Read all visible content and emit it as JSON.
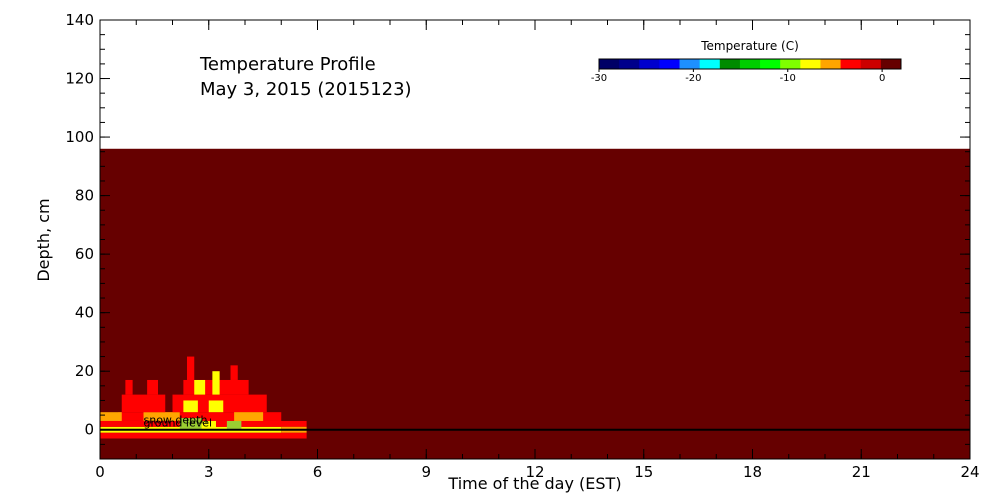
{
  "chart_data": {
    "type": "heatmap",
    "title_line1": "Temperature Profile",
    "title_line2": "May  3, 2015 (2015123)",
    "xlabel": "Time of the day (EST)",
    "ylabel": "Depth, cm",
    "xlim": [
      0,
      24
    ],
    "ylim": [
      -10,
      140
    ],
    "xticks": [
      0,
      3,
      6,
      9,
      12,
      15,
      18,
      21,
      24
    ],
    "yticks": [
      0,
      20,
      40,
      60,
      80,
      100,
      120,
      140
    ],
    "background_color": "#660000",
    "field_top_depth": 96,
    "snow_depth_label": "snow depth",
    "ground_level_label": "ground level",
    "ground_level_depth": 0,
    "colorbar": {
      "title": "Temperature (C)",
      "range": [
        -30,
        2
      ],
      "ticks": [
        -30,
        -20,
        -10,
        0
      ],
      "colors": [
        "#000066",
        "#00008b",
        "#0000cd",
        "#0000ff",
        "#1e90ff",
        "#00ffff",
        "#008b00",
        "#00cd00",
        "#00ff00",
        "#7fff00",
        "#ffff00",
        "#ffa500",
        "#ff0000",
        "#cc0000",
        "#660000"
      ]
    },
    "warm_patches": [
      {
        "t0": 0.0,
        "t1": 5.7,
        "d0": -3,
        "d1": -1,
        "color": "#ff0000"
      },
      {
        "t0": 0.0,
        "t1": 5.0,
        "d0": -1,
        "d1": 1,
        "color": "#ffff00"
      },
      {
        "t0": 0.0,
        "t1": 5.7,
        "d0": 1,
        "d1": 3,
        "color": "#ff0000"
      },
      {
        "t0": 5.0,
        "t1": 5.7,
        "d0": -1,
        "d1": 1,
        "color": "#ffa500"
      },
      {
        "t0": 0.5,
        "t1": 5.0,
        "d0": 3,
        "d1": 6,
        "color": "#ff0000"
      },
      {
        "t0": 1.2,
        "t1": 2.2,
        "d0": 3,
        "d1": 6,
        "color": "#ffa500"
      },
      {
        "t0": 2.2,
        "t1": 2.8,
        "d0": 0,
        "d1": 4,
        "color": "#9acd32"
      },
      {
        "t0": 3.5,
        "t1": 3.9,
        "d0": 0,
        "d1": 3,
        "color": "#9acd32"
      },
      {
        "t0": 0.6,
        "t1": 1.8,
        "d0": 6,
        "d1": 12,
        "color": "#ff0000"
      },
      {
        "t0": 2.0,
        "t1": 4.6,
        "d0": 6,
        "d1": 12,
        "color": "#ff0000"
      },
      {
        "t0": 2.3,
        "t1": 2.7,
        "d0": 6,
        "d1": 10,
        "color": "#ffff00"
      },
      {
        "t0": 3.0,
        "t1": 3.4,
        "d0": 6,
        "d1": 10,
        "color": "#ffff00"
      },
      {
        "t0": 2.3,
        "t1": 4.1,
        "d0": 12,
        "d1": 17,
        "color": "#ff0000"
      },
      {
        "t0": 2.6,
        "t1": 2.9,
        "d0": 12,
        "d1": 17,
        "color": "#ffff00"
      },
      {
        "t0": 3.1,
        "t1": 3.3,
        "d0": 12,
        "d1": 20,
        "color": "#ffff00"
      },
      {
        "t0": 0.7,
        "t1": 0.9,
        "d0": 12,
        "d1": 17,
        "color": "#ff0000"
      },
      {
        "t0": 1.3,
        "t1": 1.6,
        "d0": 12,
        "d1": 17,
        "color": "#ff0000"
      },
      {
        "t0": 2.4,
        "t1": 2.6,
        "d0": 17,
        "d1": 25,
        "color": "#ff0000"
      },
      {
        "t0": 3.6,
        "t1": 3.8,
        "d0": 17,
        "d1": 22,
        "color": "#ff0000"
      },
      {
        "t0": 0.0,
        "t1": 0.6,
        "d0": 3,
        "d1": 6,
        "color": "#ffa500"
      },
      {
        "t0": 3.7,
        "t1": 4.5,
        "d0": 3,
        "d1": 6,
        "color": "#ffa500"
      },
      {
        "t0": 2.8,
        "t1": 3.2,
        "d0": 0,
        "d1": 3,
        "color": "#ffff00"
      }
    ]
  }
}
